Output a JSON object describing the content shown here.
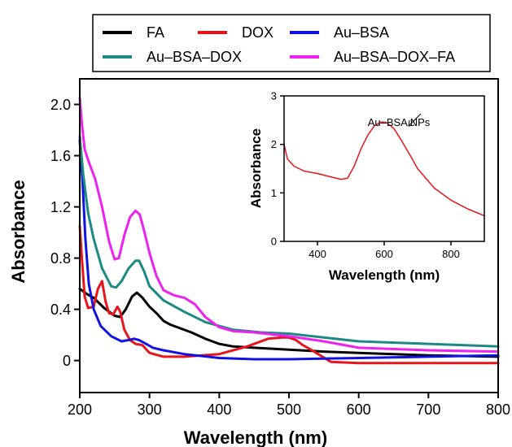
{
  "chart_data": [
    {
      "type": "line",
      "xlabel": "Wavelength (nm)",
      "ylabel": "Absorbance",
      "xlim": [
        200,
        800
      ],
      "ylim": [
        -0.25,
        2.2
      ],
      "xticks": [
        "200",
        "300",
        "400",
        "500",
        "600",
        "700",
        "800"
      ],
      "xtick_values": [
        200,
        300,
        400,
        500,
        600,
        700,
        800
      ],
      "yticks": [
        "0",
        "0.4",
        "0.8",
        "1.2",
        "1.6",
        "2.0"
      ],
      "ytick_values": [
        0,
        0.4,
        0.8,
        1.2,
        1.6,
        2.0
      ],
      "legend": "top, outside plot area, boxed",
      "series": [
        {
          "name": "FA",
          "color": "#000000",
          "x": [
            200,
            210,
            220,
            235,
            250,
            258,
            266,
            275,
            282,
            290,
            300,
            310,
            320,
            330,
            340,
            360,
            380,
            400,
            420,
            450,
            500,
            550,
            600,
            700,
            800
          ],
          "y": [
            0.56,
            0.52,
            0.49,
            0.41,
            0.35,
            0.34,
            0.4,
            0.5,
            0.53,
            0.49,
            0.42,
            0.37,
            0.31,
            0.28,
            0.26,
            0.22,
            0.17,
            0.13,
            0.11,
            0.1,
            0.085,
            0.07,
            0.06,
            0.04,
            0.03
          ]
        },
        {
          "name": "DOX",
          "color": "#e8141b",
          "x": [
            200,
            203,
            207,
            212,
            220,
            226,
            232,
            237,
            242,
            248,
            254,
            258,
            264,
            272,
            280,
            290,
            300,
            320,
            350,
            400,
            440,
            470,
            490,
            500,
            510,
            520,
            530,
            545,
            560,
            600,
            700,
            800
          ],
          "y": [
            1.05,
            0.8,
            0.5,
            0.41,
            0.42,
            0.56,
            0.62,
            0.46,
            0.37,
            0.36,
            0.42,
            0.38,
            0.24,
            0.16,
            0.13,
            0.12,
            0.06,
            0.03,
            0.03,
            0.05,
            0.11,
            0.17,
            0.18,
            0.18,
            0.16,
            0.12,
            0.09,
            0.04,
            -0.01,
            -0.02,
            -0.02,
            -0.02
          ]
        },
        {
          "name": "Au–BSA",
          "color": "#1212e0",
          "x": [
            200,
            204,
            208,
            213,
            220,
            230,
            245,
            260,
            270,
            278,
            285,
            295,
            305,
            320,
            350,
            400,
            450,
            500,
            600,
            700,
            800
          ],
          "y": [
            1.72,
            1.4,
            0.95,
            0.6,
            0.4,
            0.27,
            0.19,
            0.15,
            0.16,
            0.17,
            0.16,
            0.13,
            0.1,
            0.08,
            0.05,
            0.02,
            0.01,
            0.01,
            0.02,
            0.03,
            0.04
          ]
        },
        {
          "name": "Au–BSA–DOX",
          "color": "#1a8a82",
          "x": [
            200,
            205,
            212,
            220,
            232,
            245,
            252,
            260,
            270,
            280,
            285,
            292,
            300,
            320,
            350,
            380,
            420,
            460,
            500,
            550,
            600,
            700,
            800
          ],
          "y": [
            1.75,
            1.45,
            1.15,
            0.95,
            0.72,
            0.58,
            0.57,
            0.62,
            0.72,
            0.78,
            0.78,
            0.7,
            0.58,
            0.47,
            0.38,
            0.3,
            0.24,
            0.22,
            0.21,
            0.18,
            0.15,
            0.13,
            0.11
          ]
        },
        {
          "name": "Au–BSA–DOX–FA",
          "color": "#ee22ee",
          "x": [
            200,
            203,
            207,
            213,
            222,
            232,
            242,
            250,
            256,
            264,
            272,
            280,
            286,
            292,
            300,
            310,
            320,
            335,
            350,
            365,
            380,
            400,
            420,
            450,
            500,
            550,
            600,
            700,
            800
          ],
          "y": [
            2.05,
            1.85,
            1.65,
            1.55,
            1.42,
            1.2,
            0.93,
            0.79,
            0.8,
            0.98,
            1.12,
            1.17,
            1.14,
            1.02,
            0.84,
            0.66,
            0.55,
            0.51,
            0.49,
            0.44,
            0.34,
            0.26,
            0.23,
            0.22,
            0.19,
            0.15,
            0.1,
            0.08,
            0.07
          ]
        }
      ]
    },
    {
      "type": "line",
      "xlabel": "Wavelength (nm)",
      "ylabel": "Absorbance",
      "xlim": [
        300,
        900
      ],
      "ylim": [
        0,
        3
      ],
      "xticks": [
        "400",
        "600",
        "800"
      ],
      "xtick_values": [
        400,
        600,
        800
      ],
      "yticks": [
        "0",
        "1",
        "2",
        "3"
      ],
      "ytick_values": [
        0,
        1,
        2,
        3
      ],
      "annotations": [
        {
          "text": "Au–BSA NPs",
          "points_to_x": 600,
          "points_to_y": 2.45
        }
      ],
      "series": [
        {
          "name": "",
          "color": "#e8141b",
          "x": [
            300,
            310,
            330,
            360,
            400,
            440,
            470,
            490,
            510,
            530,
            550,
            570,
            590,
            600,
            610,
            630,
            650,
            680,
            700,
            750,
            800,
            850,
            900
          ],
          "y": [
            2.0,
            1.7,
            1.55,
            1.45,
            1.4,
            1.33,
            1.28,
            1.3,
            1.55,
            1.9,
            2.18,
            2.38,
            2.46,
            2.46,
            2.44,
            2.32,
            2.1,
            1.75,
            1.5,
            1.1,
            0.85,
            0.67,
            0.53
          ]
        }
      ]
    }
  ]
}
